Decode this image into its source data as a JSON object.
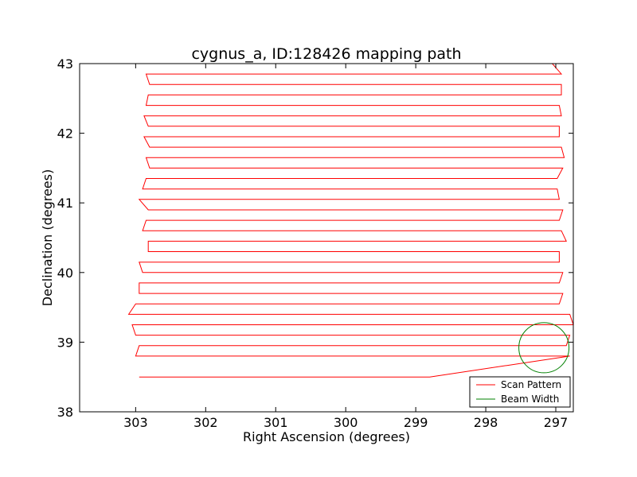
{
  "chart_data": {
    "type": "line",
    "title": "cygnus_a, ID:128426 mapping path",
    "xlabel": "Right Ascension (degrees)",
    "ylabel": "Declination (degrees)",
    "xlim": [
      303.8,
      296.75
    ],
    "ylim": [
      38,
      43
    ],
    "x_ticks": [
      303,
      302,
      301,
      300,
      299,
      298,
      297
    ],
    "y_ticks": [
      38,
      39,
      40,
      41,
      42,
      43
    ],
    "x_tick_labels": [
      "303",
      "302",
      "301",
      "300",
      "299",
      "298",
      "297"
    ],
    "y_tick_labels": [
      "38",
      "39",
      "40",
      "41",
      "42",
      "43"
    ],
    "grid": false,
    "legend_position": "lower-right",
    "series": [
      {
        "name": "Scan Pattern",
        "color": "#ff0000",
        "rows": [
          38.5,
          38.8,
          38.95,
          39.1,
          39.25,
          39.4,
          39.55,
          39.7,
          39.85,
          40.0,
          40.15,
          40.3,
          40.45,
          40.6,
          40.75,
          40.9,
          41.05,
          41.2,
          41.35,
          41.5,
          41.65,
          41.8,
          41.95,
          42.1,
          42.25,
          42.4,
          42.55,
          42.7,
          42.85,
          43.0
        ],
        "ra_left": [
          302.95,
          303.0,
          302.95,
          303.0,
          303.05,
          303.1,
          303.0,
          302.95,
          302.95,
          302.9,
          302.95,
          302.82,
          302.82,
          302.9,
          302.85,
          302.82,
          302.95,
          302.9,
          302.85,
          302.8,
          302.85,
          302.8,
          302.88,
          302.82,
          302.88,
          302.85,
          302.82,
          302.8,
          302.85,
          302.82
        ],
        "ra_right": [
          298.8,
          296.8,
          296.85,
          296.8,
          296.75,
          296.8,
          296.95,
          296.9,
          296.95,
          296.9,
          296.95,
          296.95,
          296.85,
          296.92,
          296.95,
          296.9,
          296.95,
          296.98,
          296.98,
          296.9,
          296.88,
          296.92,
          296.95,
          296.95,
          296.92,
          296.95,
          296.92,
          296.92,
          296.92,
          297.05
        ]
      },
      {
        "name": "Beam Width",
        "color": "#008000",
        "circle": {
          "ra": 297.17,
          "dec": 38.92,
          "radius_deg": 0.36
        }
      }
    ]
  }
}
